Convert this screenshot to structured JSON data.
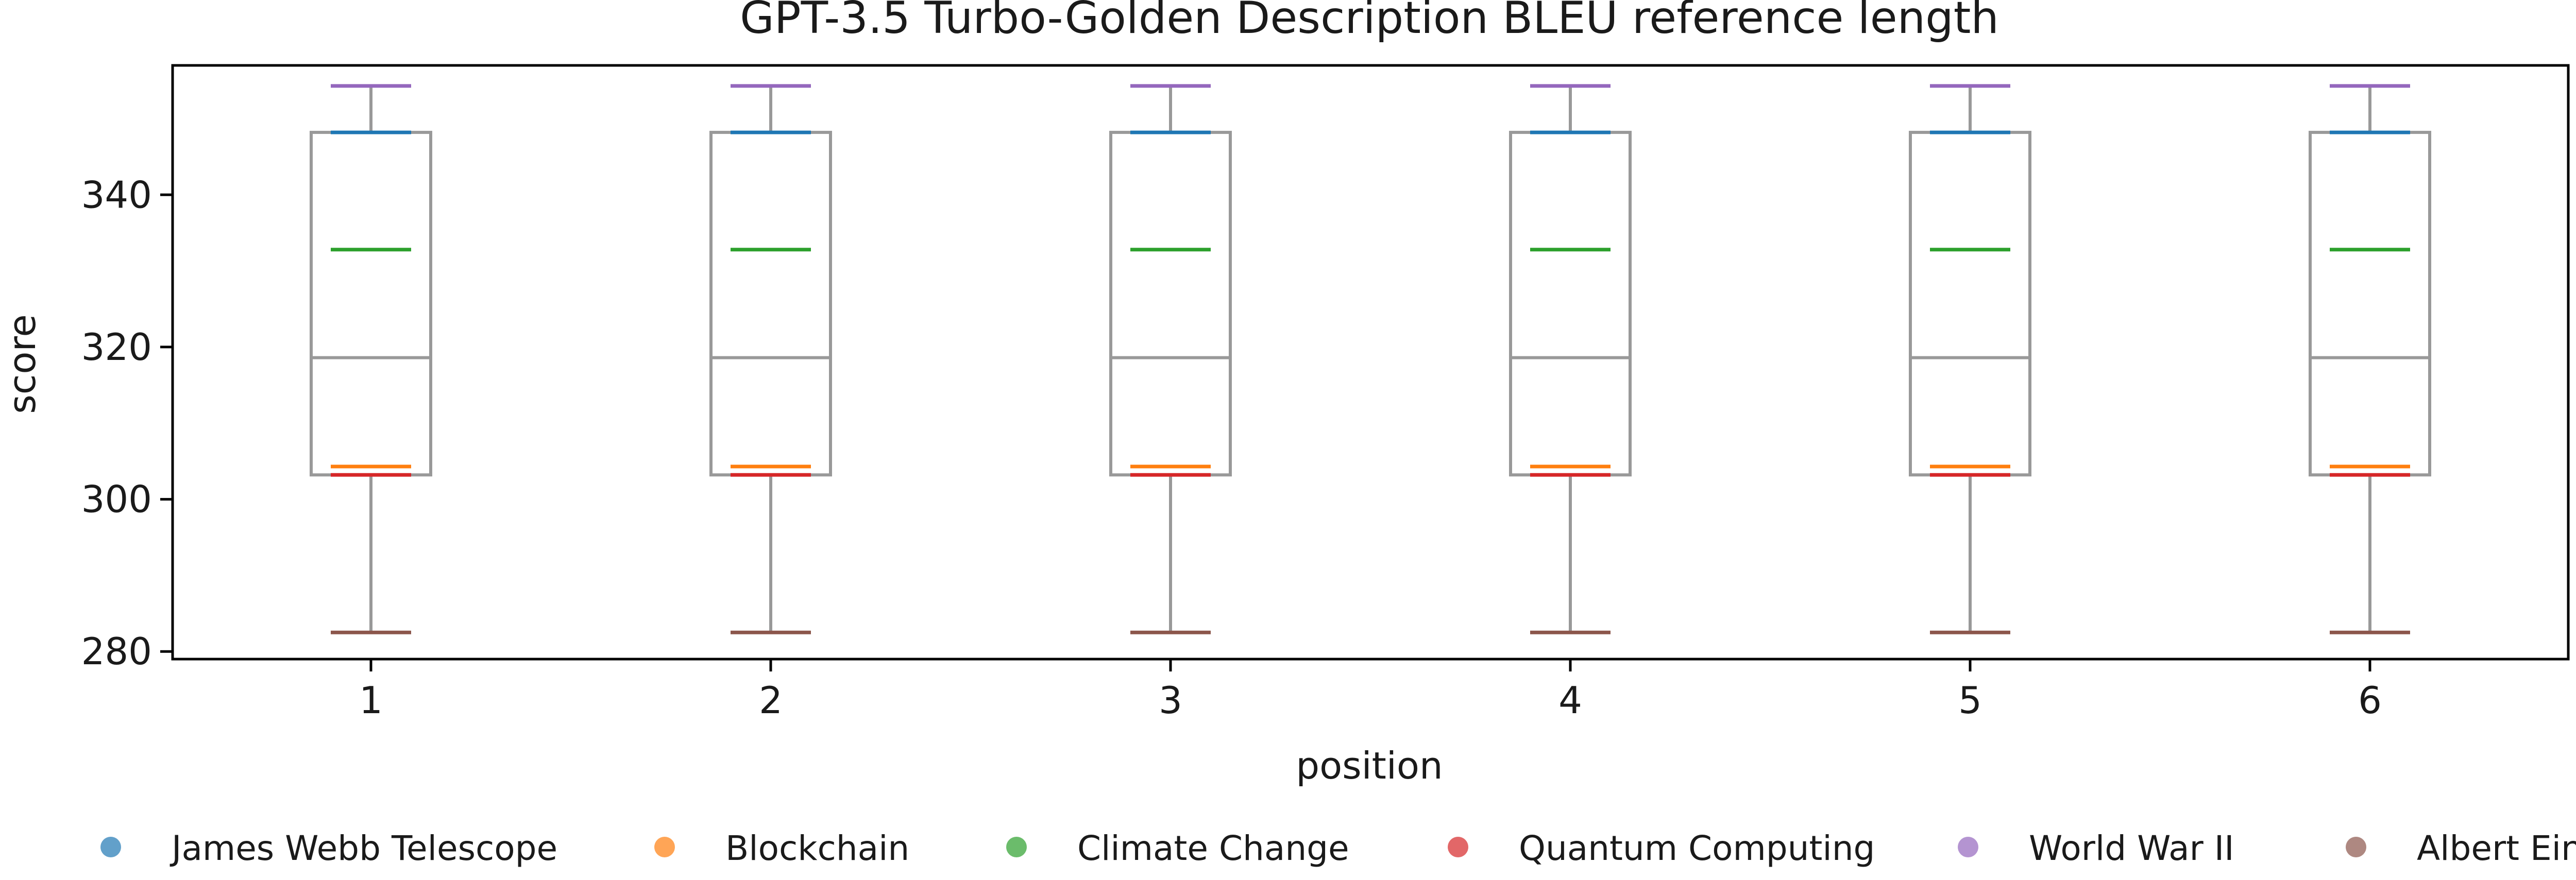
{
  "chart_data": {
    "type": "box",
    "title": "GPT-3.5 Turbo-Golden Description BLEU reference length",
    "xlabel": "position",
    "ylabel": "score",
    "categories": [
      "1",
      "2",
      "3",
      "4",
      "5",
      "6"
    ],
    "ylim": [
      279,
      357
    ],
    "yticks": [
      280,
      300,
      320,
      340
    ],
    "grid": false,
    "legend_position": "bottom",
    "box": {
      "whisker_low": 282.5,
      "q1": 303.2,
      "median": 318.6,
      "q3": 348.2,
      "whisker_high": 354.3
    },
    "series": [
      {
        "name": "James Webb Telescope",
        "color": "#1f77b4",
        "values": [
          348.2,
          348.2,
          348.2,
          348.2,
          348.2,
          348.2
        ]
      },
      {
        "name": "Blockchain",
        "color": "#ff7f0e",
        "values": [
          304.3,
          304.3,
          304.3,
          304.3,
          304.3,
          304.3
        ]
      },
      {
        "name": "Climate Change",
        "color": "#2ca02c",
        "values": [
          332.8,
          332.8,
          332.8,
          332.8,
          332.8,
          332.8
        ]
      },
      {
        "name": "Quantum Computing",
        "color": "#d62728",
        "values": [
          303.2,
          303.2,
          303.2,
          303.2,
          303.2,
          303.2
        ]
      },
      {
        "name": "World War II",
        "color": "#9467bd",
        "values": [
          354.3,
          354.3,
          354.3,
          354.3,
          354.3,
          354.3
        ]
      },
      {
        "name": "Albert Einstein",
        "color": "#8c564b",
        "values": [
          282.5,
          282.5,
          282.5,
          282.5,
          282.5,
          282.5
        ]
      }
    ]
  }
}
